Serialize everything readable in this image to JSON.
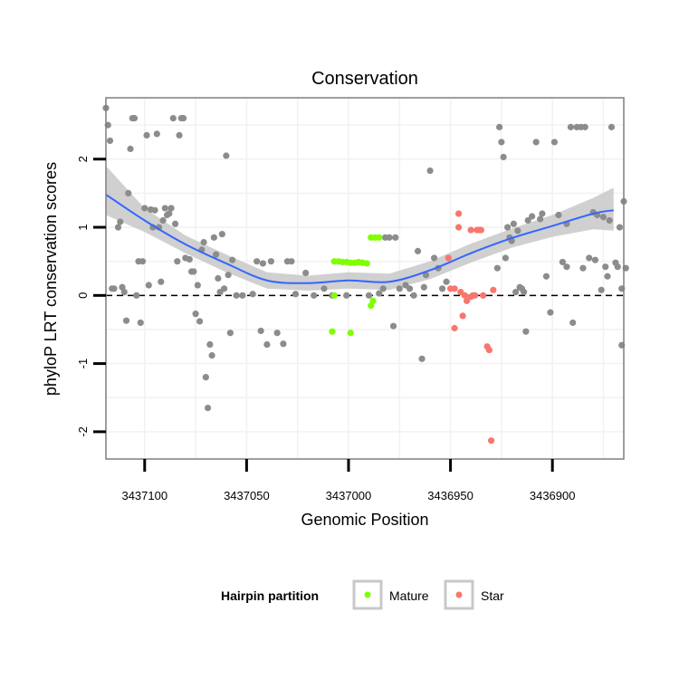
{
  "chart_data": {
    "type": "scatter",
    "title": "Conservation",
    "xlabel": "Genomic Position",
    "ylabel": "phyloP LRT conservation scores",
    "x_reversed": true,
    "xlim": [
      3437119,
      3436865
    ],
    "ylim": [
      -2.4,
      2.9
    ],
    "x_ticks": [
      3437100,
      3437050,
      3437000,
      3436950,
      3436900
    ],
    "x_tick_labels": [
      "3437100",
      "3437050",
      "3437000",
      "3436950",
      "3436900"
    ],
    "y_ticks": [
      2,
      1,
      0,
      -1,
      -2
    ],
    "y_tick_labels": [
      "2",
      "1",
      "0",
      "-1",
      "-2"
    ],
    "grid": true,
    "reference_line": {
      "y": 0,
      "style": "dashed"
    },
    "legend": {
      "title": "Hairpin partition",
      "position": "bottom",
      "entries": [
        {
          "label": "Mature",
          "color": "#7fff00"
        },
        {
          "label": "Star",
          "color": "#f8766d"
        }
      ]
    },
    "colors": {
      "other": "#8c8c8c",
      "smooth": "#3366ff",
      "band": "#c8c8c8",
      "panel_border": "#7f7f7f"
    },
    "smooth": {
      "x": [
        3437119,
        3437100,
        3437080,
        3437060,
        3437040,
        3437020,
        3437000,
        3436980,
        3436960,
        3436940,
        3436920,
        3436900,
        3436880,
        3436870
      ],
      "y": [
        1.48,
        1.1,
        0.75,
        0.47,
        0.22,
        0.18,
        0.22,
        0.2,
        0.37,
        0.62,
        0.84,
        1.02,
        1.2,
        1.25
      ],
      "lower": [
        1.18,
        0.93,
        0.62,
        0.34,
        0.1,
        0.07,
        0.1,
        0.08,
        0.24,
        0.48,
        0.7,
        0.86,
        0.97,
        0.95
      ],
      "upper": [
        1.9,
        1.28,
        0.88,
        0.6,
        0.34,
        0.29,
        0.34,
        0.32,
        0.5,
        0.76,
        0.98,
        1.18,
        1.43,
        1.58
      ]
    },
    "series": [
      {
        "name": "Mature",
        "color": "#7fff00",
        "points": [
          [
            3437007,
            0.5
          ],
          [
            3437005,
            0.5
          ],
          [
            3437003,
            0.49
          ],
          [
            3437001,
            0.49
          ],
          [
            3436999,
            0.48
          ],
          [
            3436997,
            0.48
          ],
          [
            3436995,
            0.49
          ],
          [
            3436993,
            0.48
          ],
          [
            3436991,
            0.47
          ],
          [
            3436989,
            0.85
          ],
          [
            3436987,
            0.85
          ],
          [
            3436985,
            0.85
          ],
          [
            3437007,
            0.0
          ],
          [
            3437008,
            -0.53
          ],
          [
            3436999,
            -0.55
          ],
          [
            3436989,
            -0.15
          ],
          [
            3436988,
            -0.08
          ]
        ]
      },
      {
        "name": "Star",
        "color": "#f8766d",
        "points": [
          [
            3436951,
            0.55
          ],
          [
            3436950,
            0.1
          ],
          [
            3436948,
            0.1
          ],
          [
            3436946,
            1.2
          ],
          [
            3436946,
            1.0
          ],
          [
            3436943,
            0.0
          ],
          [
            3436942,
            -0.08
          ],
          [
            3436940,
            0.96
          ],
          [
            3436939,
            0.0
          ],
          [
            3436938,
            0.0
          ],
          [
            3436937,
            0.96
          ],
          [
            3436936,
            0.96
          ],
          [
            3436935,
            0.96
          ],
          [
            3436934,
            0.0
          ],
          [
            3436932,
            -0.75
          ],
          [
            3436931,
            -0.8
          ],
          [
            3436930,
            -2.13
          ],
          [
            3436929,
            0.08
          ],
          [
            3436944,
            -0.3
          ],
          [
            3436948,
            -0.48
          ],
          [
            3436940,
            -0.02
          ],
          [
            3436945,
            0.05
          ]
        ]
      },
      {
        "name": "Other",
        "color": "#8c8c8c",
        "points": [
          [
            3437119,
            2.75
          ],
          [
            3437118,
            2.5
          ],
          [
            3437117,
            2.27
          ],
          [
            3437116,
            0.1
          ],
          [
            3437115,
            0.1
          ],
          [
            3437113,
            1.0
          ],
          [
            3437112,
            1.08
          ],
          [
            3437111,
            0.12
          ],
          [
            3437110,
            0.05
          ],
          [
            3437109,
            -0.37
          ],
          [
            3437108,
            1.5
          ],
          [
            3437107,
            2.15
          ],
          [
            3437106,
            2.6
          ],
          [
            3437105,
            2.6
          ],
          [
            3437104,
            0.0
          ],
          [
            3437103,
            0.5
          ],
          [
            3437102,
            -0.4
          ],
          [
            3437101,
            0.5
          ],
          [
            3437100,
            1.28
          ],
          [
            3437099,
            2.35
          ],
          [
            3437098,
            0.15
          ],
          [
            3437097,
            1.26
          ],
          [
            3437096,
            1.0
          ],
          [
            3437095,
            1.25
          ],
          [
            3437094,
            2.37
          ],
          [
            3437093,
            1.0
          ],
          [
            3437092,
            0.2
          ],
          [
            3437091,
            1.1
          ],
          [
            3437090,
            1.28
          ],
          [
            3437089,
            1.18
          ],
          [
            3437088,
            1.2
          ],
          [
            3437087,
            1.28
          ],
          [
            3437086,
            2.6
          ],
          [
            3437085,
            1.05
          ],
          [
            3437084,
            0.5
          ],
          [
            3437083,
            2.35
          ],
          [
            3437082,
            2.6
          ],
          [
            3437081,
            2.6
          ],
          [
            3437080,
            0.55
          ],
          [
            3437078,
            0.53
          ],
          [
            3437077,
            0.35
          ],
          [
            3437076,
            0.35
          ],
          [
            3437075,
            -0.27
          ],
          [
            3437074,
            0.15
          ],
          [
            3437073,
            -0.38
          ],
          [
            3437072,
            0.67
          ],
          [
            3437071,
            0.78
          ],
          [
            3437070,
            -1.2
          ],
          [
            3437069,
            -1.65
          ],
          [
            3437068,
            -0.72
          ],
          [
            3437067,
            -0.88
          ],
          [
            3437066,
            0.85
          ],
          [
            3437065,
            0.6
          ],
          [
            3437064,
            0.25
          ],
          [
            3437063,
            0.05
          ],
          [
            3437062,
            0.9
          ],
          [
            3437061,
            0.1
          ],
          [
            3437060,
            2.05
          ],
          [
            3437059,
            0.3
          ],
          [
            3437058,
            -0.55
          ],
          [
            3437057,
            0.52
          ],
          [
            3437055,
            0.0
          ],
          [
            3437052,
            0.0
          ],
          [
            3437047,
            0.02
          ],
          [
            3437045,
            0.5
          ],
          [
            3437043,
            -0.52
          ],
          [
            3437042,
            0.47
          ],
          [
            3437040,
            -0.72
          ],
          [
            3437038,
            0.5
          ],
          [
            3437035,
            -0.55
          ],
          [
            3437032,
            -0.71
          ],
          [
            3437030,
            0.5
          ],
          [
            3437028,
            0.5
          ],
          [
            3437026,
            0.02
          ],
          [
            3437021,
            0.33
          ],
          [
            3437017,
            0.0
          ],
          [
            3437012,
            0.1
          ],
          [
            3437008,
            0.0
          ],
          [
            3437001,
            0.0
          ],
          [
            3436990,
            0.0
          ],
          [
            3436985,
            0.03
          ],
          [
            3436983,
            0.1
          ],
          [
            3436982,
            0.85
          ],
          [
            3436980,
            0.85
          ],
          [
            3436978,
            -0.45
          ],
          [
            3436977,
            0.85
          ],
          [
            3436975,
            0.1
          ],
          [
            3436972,
            0.15
          ],
          [
            3436970,
            0.1
          ],
          [
            3436968,
            0.0
          ],
          [
            3436966,
            0.65
          ],
          [
            3436964,
            -0.93
          ],
          [
            3436963,
            0.12
          ],
          [
            3436962,
            0.3
          ],
          [
            3436960,
            1.83
          ],
          [
            3436958,
            0.55
          ],
          [
            3436956,
            0.4
          ],
          [
            3436954,
            0.1
          ],
          [
            3436952,
            0.2
          ],
          [
            3436926,
            2.47
          ],
          [
            3436925,
            2.25
          ],
          [
            3436924,
            2.03
          ],
          [
            3436922,
            1.0
          ],
          [
            3436920,
            0.8
          ],
          [
            3436919,
            1.05
          ],
          [
            3436918,
            0.05
          ],
          [
            3436916,
            0.12
          ],
          [
            3436915,
            0.1
          ],
          [
            3436913,
            -0.53
          ],
          [
            3436912,
            1.1
          ],
          [
            3436910,
            1.16
          ],
          [
            3436908,
            2.25
          ],
          [
            3436905,
            1.2
          ],
          [
            3436903,
            0.28
          ],
          [
            3436901,
            -0.25
          ],
          [
            3436899,
            2.25
          ],
          [
            3436897,
            1.18
          ],
          [
            3436895,
            0.49
          ],
          [
            3436893,
            0.42
          ],
          [
            3436891,
            2.47
          ],
          [
            3436890,
            -0.4
          ],
          [
            3436888,
            2.47
          ],
          [
            3436886,
            2.47
          ],
          [
            3436884,
            2.47
          ],
          [
            3436882,
            0.55
          ],
          [
            3436880,
            1.22
          ],
          [
            3436878,
            1.18
          ],
          [
            3436876,
            0.08
          ],
          [
            3436874,
            0.42
          ],
          [
            3436872,
            1.1
          ],
          [
            3436871,
            2.47
          ],
          [
            3436869,
            0.48
          ],
          [
            3436867,
            1.0
          ],
          [
            3436866,
            0.1
          ],
          [
            3436866,
            -0.73
          ],
          [
            3436865,
            1.38
          ],
          [
            3436864,
            0.4
          ],
          [
            3436868,
            0.42
          ],
          [
            3436873,
            0.28
          ],
          [
            3436875,
            1.15
          ],
          [
            3436879,
            0.52
          ],
          [
            3436885,
            0.4
          ],
          [
            3436893,
            1.05
          ],
          [
            3436906,
            1.12
          ],
          [
            3436914,
            0.05
          ],
          [
            3436917,
            0.95
          ],
          [
            3436921,
            0.85
          ],
          [
            3436923,
            0.55
          ],
          [
            3436927,
            0.4
          ]
        ]
      }
    ]
  }
}
